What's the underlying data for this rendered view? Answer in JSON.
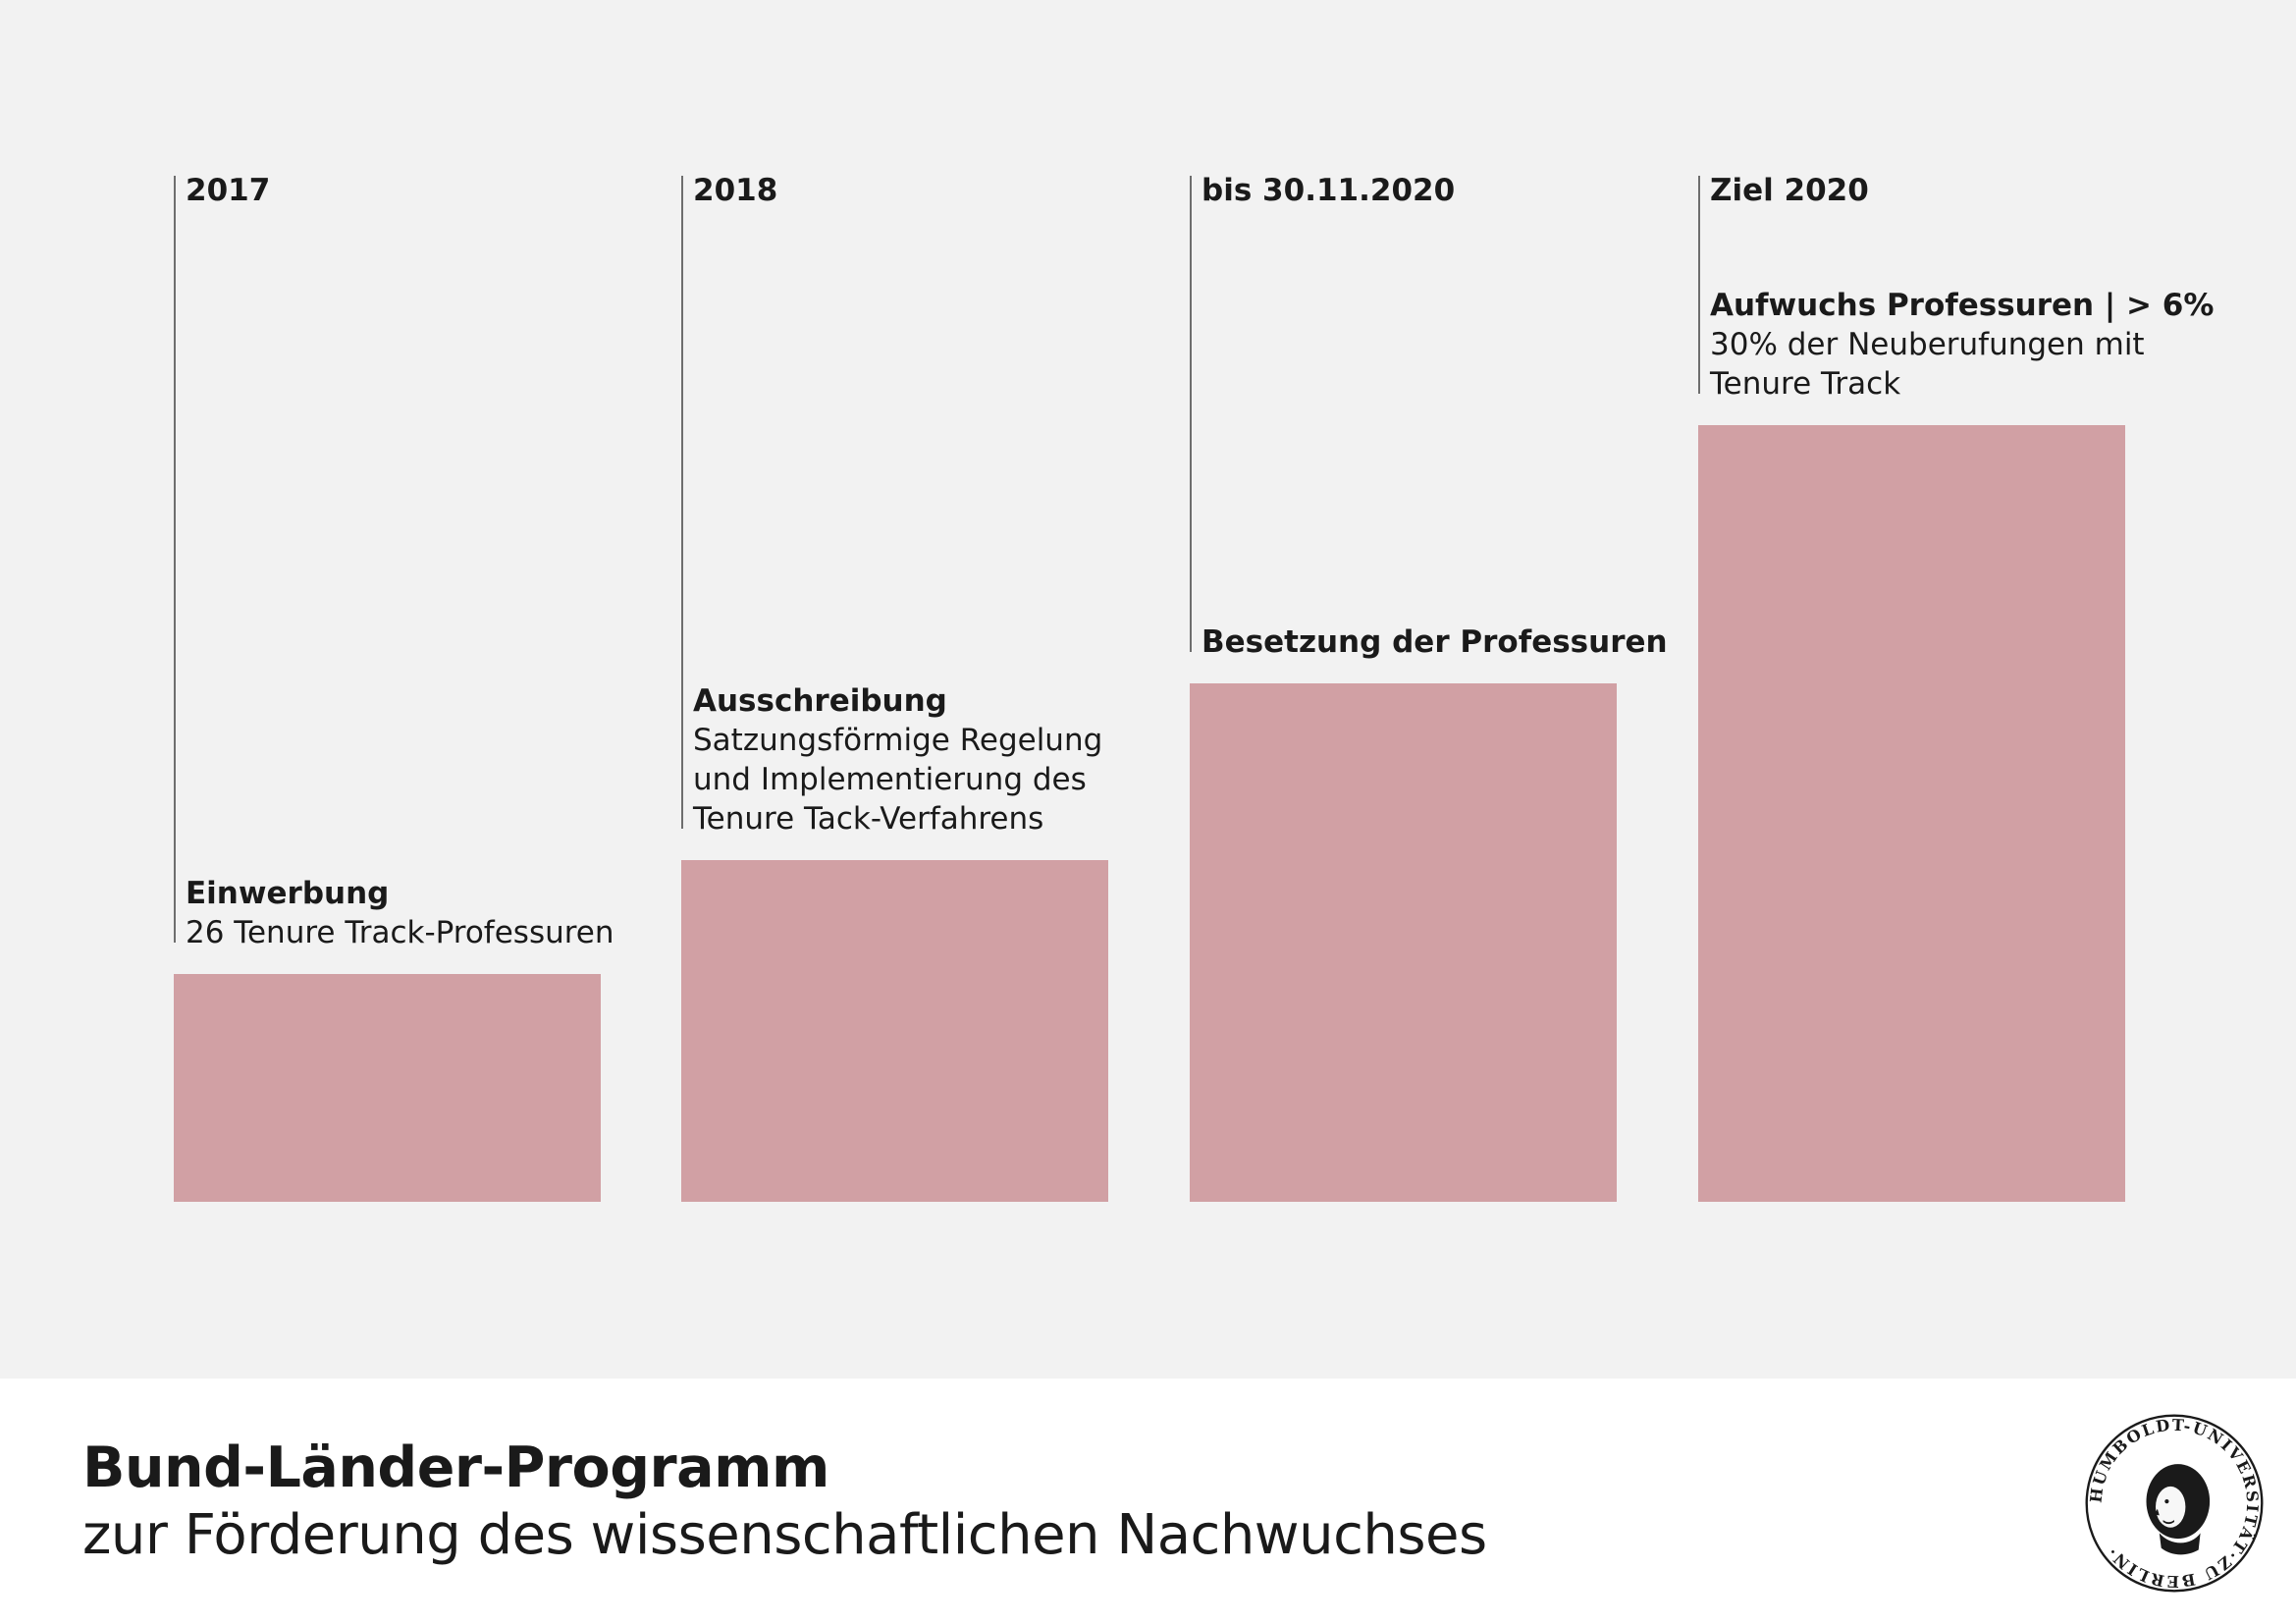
{
  "chart_data": {
    "type": "bar",
    "categories": [
      "2017",
      "2018",
      "bis 30.11.2020",
      "Ziel 2020"
    ],
    "stages": [
      {
        "date": "2017",
        "lead": "Einwerbung",
        "detail": [
          "26 Tenure Track-Professuren"
        ],
        "value": 22
      },
      {
        "date": "2018",
        "lead": "Ausschreibung",
        "detail": [
          "Satzungsförmige Regelung",
          "und Implementierung des",
          "Tenure Tack-Verfahrens"
        ],
        "value": 33
      },
      {
        "date": "bis 30.11.2020",
        "lead": "Besetzung der Professuren",
        "detail": [],
        "value": 50
      },
      {
        "date": "Ziel 2020",
        "lead": "Aufwuchs Professuren | > 6%",
        "detail": [
          "30% der Neuberufungen mit",
          "Tenure Track"
        ],
        "value": 75
      }
    ],
    "bar_color": "#d1a0a4",
    "line_color": "#6e6e6e",
    "background": "#f2f2f2"
  },
  "footer": {
    "title": "Bund-Länder-Programm",
    "subtitle": "zur Förderung des wissenschaftlichen Nachwuchses"
  },
  "logo": {
    "icon": "humboldt-university-seal-icon",
    "ring_text": "HUMBOLDT-UNIVERSITÄT·ZU BERLIN·"
  }
}
